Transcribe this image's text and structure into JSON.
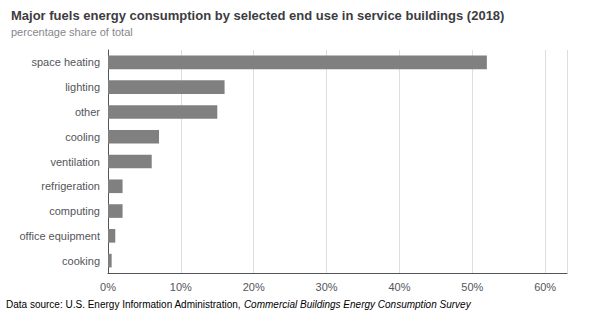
{
  "chart_data": {
    "type": "bar",
    "orientation": "horizontal",
    "title": "Major fuels energy consumption by selected end use in service buildings (2018)",
    "subtitle": "percentage share of total",
    "categories": [
      "space heating",
      "lighting",
      "other",
      "cooling",
      "ventilation",
      "refrigeration",
      "computing",
      "office equipment",
      "cooking"
    ],
    "values": [
      52,
      16,
      15,
      7,
      6,
      2,
      2,
      1,
      0.5
    ],
    "color": "#808080",
    "xlim": [
      0,
      63
    ],
    "xticks": [
      {
        "value": 0,
        "label": "0%"
      },
      {
        "value": 10,
        "label": "10%"
      },
      {
        "value": 20,
        "label": "20%"
      },
      {
        "value": 30,
        "label": "30%"
      },
      {
        "value": 40,
        "label": "40%"
      },
      {
        "value": 50,
        "label": "50%"
      },
      {
        "value": 60,
        "label": "60%"
      }
    ],
    "grid": true,
    "annotations": [
      "Data source: U.S. Energy Information Administration,",
      "Commercial Buildings Energy Consumption Survey"
    ]
  }
}
